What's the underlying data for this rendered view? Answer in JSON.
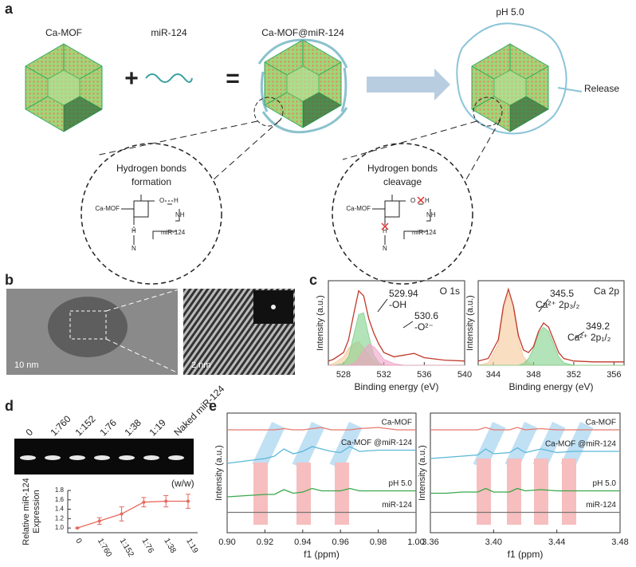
{
  "panel_labels": [
    "a",
    "b",
    "c",
    "d",
    "e"
  ],
  "scheme": {
    "mof": "Ca-MOF",
    "mir": "miR-124",
    "complex": "Ca-MOF@miR-124",
    "plus": "+",
    "equals": "=",
    "ph": "pH 5.0",
    "release": "Release",
    "left_circle": {
      "title": [
        "Hydrogen bonds",
        "formation"
      ],
      "mof": "Ca-MOF",
      "o": "O",
      "h": "H",
      "nh": "NH",
      "mir": "miR-124",
      "h2": "H",
      "n": "N"
    },
    "right_circle": {
      "title": [
        "Hydrogen bonds",
        "cleavage"
      ],
      "mof": "Ca-MOF",
      "o": "O",
      "h": "H",
      "nh": "NH",
      "mir": "miR-124",
      "h2": "H",
      "n": "N"
    }
  },
  "tem": {
    "scale1": "10 nm",
    "scale2": "2 nm"
  },
  "gel": {
    "lanes": [
      "0",
      "1:760",
      "1:152",
      "1:76",
      "1:38",
      "1:19",
      "Naked miR-124"
    ],
    "ratio": "(w/w)"
  },
  "chart_data": [
    {
      "type": "line",
      "xlabel": "Binding energy (eV)",
      "ylabel": "Intensity (a.u.)",
      "label": "O 1s",
      "annotations": [
        "529.94",
        "-OH",
        "530.6",
        "-O²⁻"
      ],
      "xlim": [
        526.5,
        540
      ],
      "xticks": [
        528,
        532,
        536,
        540
      ],
      "ylim": [
        0,
        1
      ],
      "x": [
        526.5,
        527,
        528,
        528.5,
        529,
        529.5,
        530,
        530.5,
        531,
        531.5,
        532,
        533,
        534,
        535,
        536,
        538,
        540
      ],
      "series": [
        {
          "color": "#f5c89a",
          "fill": true,
          "values": [
            0,
            0.02,
            0.1,
            0.2,
            0.25,
            0.28,
            0.2,
            0.12,
            0.05,
            0.01,
            0,
            0,
            0,
            0,
            0,
            0,
            0
          ]
        },
        {
          "color": "#7fd08a",
          "fill": true,
          "values": [
            0,
            0,
            0.02,
            0.1,
            0.35,
            0.6,
            0.62,
            0.35,
            0.12,
            0.03,
            0,
            0,
            0,
            0,
            0,
            0,
            0
          ]
        },
        {
          "color": "#f2a0c8",
          "fill": true,
          "values": [
            0,
            0,
            0,
            0,
            0.02,
            0.08,
            0.18,
            0.25,
            0.22,
            0.15,
            0.07,
            0.02,
            0,
            0,
            0,
            0,
            0
          ]
        },
        {
          "color": "#c0392b",
          "fill": false,
          "values": [
            0.05,
            0.07,
            0.15,
            0.3,
            0.6,
            0.88,
            0.82,
            0.55,
            0.38,
            0.25,
            0.15,
            0.1,
            0.12,
            0.14,
            0.09,
            0.06,
            0.05
          ]
        }
      ]
    },
    {
      "type": "line",
      "xlabel": "Binding energy (eV)",
      "ylabel": "Intensity (a.u.)",
      "label": "Ca 2p",
      "annotations": [
        "345.5",
        "Ca²⁺ 2p₃/₂",
        "349.2",
        "Ca²⁺ 2p₁/₂"
      ],
      "xlim": [
        342.5,
        357
      ],
      "xticks": [
        344,
        348,
        352,
        356
      ],
      "ylim": [
        0,
        1
      ],
      "x": [
        342.5,
        343.5,
        344.5,
        345,
        345.5,
        346,
        346.5,
        347,
        347.5,
        348,
        348.5,
        349,
        349.5,
        350,
        350.5,
        351,
        352,
        354,
        357
      ],
      "series": [
        {
          "color": "#f5c89a",
          "fill": true,
          "values": [
            0,
            0.03,
            0.25,
            0.65,
            0.85,
            0.65,
            0.3,
            0.1,
            0.03,
            0,
            0,
            0,
            0,
            0,
            0,
            0,
            0,
            0,
            0
          ]
        },
        {
          "color": "#7fd08a",
          "fill": true,
          "values": [
            0,
            0,
            0,
            0,
            0,
            0,
            0,
            0.02,
            0.08,
            0.2,
            0.38,
            0.45,
            0.4,
            0.25,
            0.1,
            0.03,
            0,
            0,
            0
          ]
        },
        {
          "color": "#c0392b",
          "fill": false,
          "values": [
            0.05,
            0.08,
            0.3,
            0.7,
            0.9,
            0.7,
            0.35,
            0.18,
            0.15,
            0.22,
            0.4,
            0.5,
            0.45,
            0.3,
            0.15,
            0.08,
            0.05,
            0.04,
            0.04
          ]
        }
      ]
    },
    {
      "type": "line",
      "ylabel": [
        "Relative miR-124",
        "Expression"
      ],
      "categories": [
        "0",
        "1:760",
        "1:152",
        "1:76",
        "1:38",
        "1:19"
      ],
      "values": [
        1.0,
        1.15,
        1.3,
        1.55,
        1.57,
        1.57
      ],
      "errors": [
        0,
        0.07,
        0.15,
        0.1,
        0.12,
        0.15
      ],
      "color": "#e8685e",
      "ylim": [
        0.9,
        1.8
      ],
      "yticks": [
        {
          "value": 1.0,
          "label": "1.0"
        },
        1.2,
        1.4,
        1.6,
        1.8
      ]
    },
    {
      "type": "line",
      "xlabel": "f1 (ppm)",
      "ylabel": "Intensity (a.u.)",
      "xlim": [
        0.9,
        1.0
      ],
      "xticks": [
        {
          "value": 0.9,
          "label": "0.90"
        },
        0.92,
        0.94,
        0.96,
        0.98,
        {
          "value": 1.0,
          "label": "1.00"
        }
      ],
      "ylim": [
        0,
        1
      ],
      "x": [
        0.9,
        0.91,
        0.92,
        0.925,
        0.93,
        0.935,
        0.94,
        0.945,
        0.95,
        0.955,
        0.96,
        0.965,
        0.97,
        0.98,
        0.99,
        1.0
      ],
      "series": [
        {
          "name": "Ca-MOF",
          "color": "#e8786e",
          "values": [
            0.86,
            0.86,
            0.86,
            0.86,
            0.87,
            0.86,
            0.86,
            0.87,
            0.88,
            0.86,
            0.86,
            0.86,
            0.87,
            0.88,
            0.86,
            0.86
          ]
        },
        {
          "name": "Ca-MOF @miR-124",
          "color": "#5bb8d8",
          "values": [
            0.58,
            0.6,
            0.62,
            0.64,
            0.7,
            0.66,
            0.68,
            0.72,
            0.7,
            0.68,
            0.67,
            0.72,
            0.68,
            0.69,
            0.69,
            0.69
          ]
        },
        {
          "name": "pH 5.0",
          "color": "#3aa84a",
          "values": [
            0.3,
            0.31,
            0.32,
            0.32,
            0.36,
            0.33,
            0.34,
            0.37,
            0.35,
            0.35,
            0.35,
            0.37,
            0.35,
            0.35,
            0.35,
            0.35
          ]
        },
        {
          "name": "miR-124",
          "color": "#777777",
          "values": [
            0.17,
            0.17,
            0.17,
            0.17,
            0.17,
            0.17,
            0.17,
            0.17,
            0.17,
            0.17,
            0.17,
            0.17,
            0.17,
            0.17,
            0.17,
            0.17
          ]
        }
      ]
    },
    {
      "type": "line",
      "xlabel": "f1 (ppm)",
      "ylabel": "Intensity (a.u.)",
      "xlim": [
        3.36,
        3.48
      ],
      "xticks": [
        3.36,
        {
          "value": 3.4,
          "label": "3.40"
        },
        3.44,
        3.48
      ],
      "ylim": [
        0,
        1
      ],
      "x": [
        3.36,
        3.37,
        3.38,
        3.39,
        3.395,
        3.4,
        3.41,
        3.415,
        3.42,
        3.43,
        3.44,
        3.45,
        3.46,
        3.47,
        3.48
      ],
      "series": [
        {
          "name": "Ca-MOF",
          "color": "#e8786e",
          "values": [
            0.86,
            0.86,
            0.86,
            0.86,
            0.88,
            0.86,
            0.86,
            0.88,
            0.86,
            0.87,
            0.86,
            0.86,
            0.86,
            0.86,
            0.86
          ]
        },
        {
          "name": "Ca-MOF @miR-124",
          "color": "#5bb8d8",
          "values": [
            0.62,
            0.63,
            0.64,
            0.65,
            0.7,
            0.66,
            0.67,
            0.71,
            0.67,
            0.7,
            0.67,
            0.68,
            0.68,
            0.68,
            0.68
          ]
        },
        {
          "name": "pH 5.0",
          "color": "#3aa84a",
          "values": [
            0.33,
            0.33,
            0.34,
            0.34,
            0.37,
            0.34,
            0.34,
            0.37,
            0.35,
            0.36,
            0.35,
            0.35,
            0.35,
            0.35,
            0.35
          ]
        },
        {
          "name": "miR-124",
          "color": "#777777",
          "values": [
            0.17,
            0.17,
            0.17,
            0.17,
            0.17,
            0.17,
            0.17,
            0.17,
            0.17,
            0.17,
            0.17,
            0.17,
            0.17,
            0.17,
            0.17
          ]
        }
      ]
    }
  ]
}
